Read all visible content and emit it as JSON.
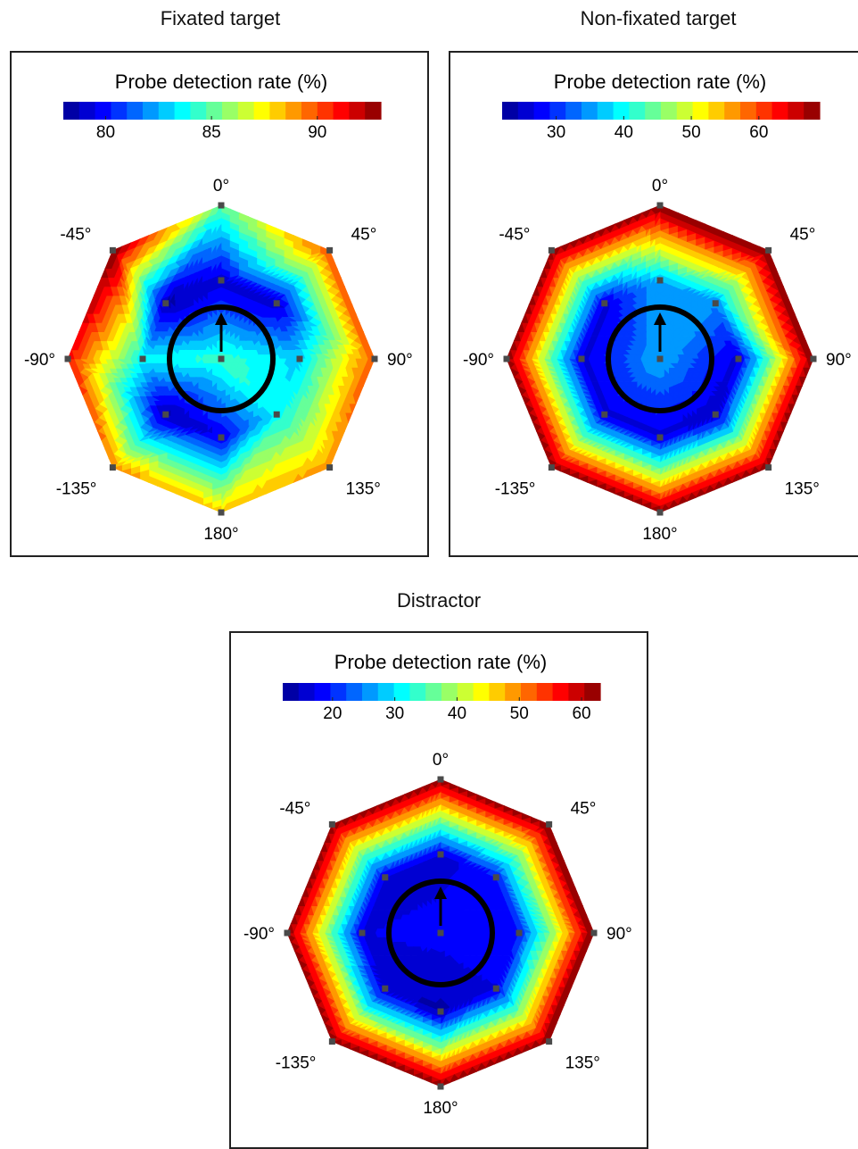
{
  "figure": {
    "colormap_stops": [
      "#00008f",
      "#0000ff",
      "#0080ff",
      "#00ffff",
      "#80ff80",
      "#ffff00",
      "#ff8000",
      "#ff0000",
      "#800000"
    ],
    "grid_color": "#4a4a4a",
    "ring_color": "#000000"
  },
  "chart_data": [
    {
      "type": "heatmap",
      "title": "Fixated target",
      "colorbar": {
        "label": "Probe detection rate (%)",
        "range": [
          78,
          93
        ],
        "ticks": [
          80,
          85,
          90
        ]
      },
      "angle_labels": [
        "0°",
        "45°",
        "90°",
        "135°",
        "180°",
        "-135°",
        "-90°",
        "-45°"
      ],
      "probe_angles_deg": [
        0,
        45,
        90,
        135,
        180,
        -135,
        -90,
        -45
      ],
      "values": {
        "center": 84.5,
        "inner_ring": [
          79,
          79,
          83,
          83.5,
          79.5,
          78.5,
          83.5,
          78.5
        ],
        "outer_ring": [
          85,
          90,
          90,
          89,
          88,
          89,
          91,
          93
        ]
      }
    },
    {
      "type": "heatmap",
      "title": "Non-fixated target",
      "colorbar": {
        "label": "Probe detection rate (%)",
        "range": [
          22,
          69
        ],
        "ticks": [
          30,
          40,
          50,
          60
        ]
      },
      "angle_labels": [
        "0°",
        "45°",
        "90°",
        "135°",
        "180°",
        "-135°",
        "-90°",
        "-45°"
      ],
      "probe_angles_deg": [
        0,
        45,
        90,
        135,
        180,
        -135,
        -90,
        -45
      ],
      "values": {
        "center": 36,
        "inner_ring": [
          36,
          34,
          26,
          25,
          26,
          26,
          26,
          26
        ],
        "outer_ring": [
          69,
          69,
          69,
          69,
          69,
          69,
          69,
          69
        ]
      }
    },
    {
      "type": "heatmap",
      "title": "Distractor",
      "colorbar": {
        "label": "Probe detection rate (%)",
        "range": [
          12,
          63
        ],
        "ticks": [
          20,
          30,
          40,
          50,
          60
        ]
      },
      "angle_labels": [
        "0°",
        "45°",
        "90°",
        "135°",
        "180°",
        "-135°",
        "-90°",
        "-45°"
      ],
      "probe_angles_deg": [
        0,
        45,
        90,
        135,
        180,
        -135,
        -90,
        -45
      ],
      "values": {
        "center": 18,
        "inner_ring": [
          16,
          19,
          19,
          17,
          14,
          15,
          17,
          16
        ],
        "outer_ring": [
          63,
          63,
          63,
          63,
          63,
          63,
          63,
          63
        ]
      }
    }
  ]
}
